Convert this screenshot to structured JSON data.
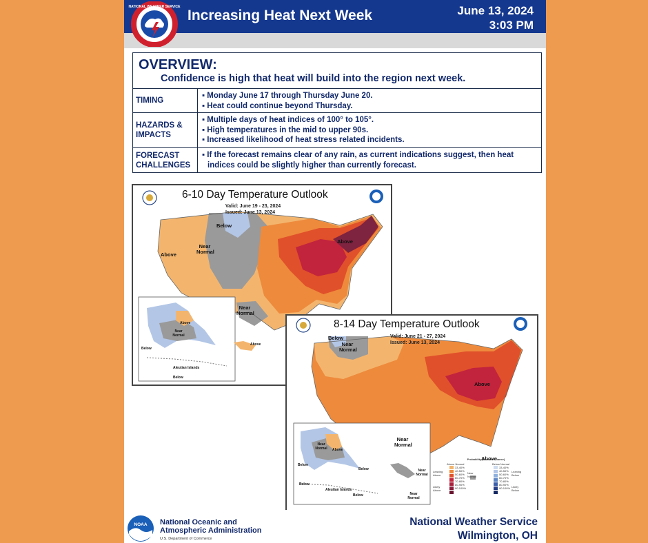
{
  "header": {
    "title": "Increasing Heat Next Week",
    "date": "June 13, 2024",
    "time": "3:03 PM",
    "logo_text": "NATIONAL WEATHER SERVICE",
    "bar_color": "#15388f"
  },
  "overview": {
    "title": "OVERVIEW:",
    "subtitle": "Confidence is high that heat will build into the region next week.",
    "rows": [
      {
        "label": "TIMING",
        "items": [
          "Monday June 17 through Thursday June 20.",
          "Heat could continue beyond Thursday."
        ]
      },
      {
        "label": "HAZARDS & IMPACTS",
        "items": [
          "Multiple days of heat indices of 100° to 105°.",
          "High temperatures in the mid to upper 90s.",
          "Increased likelihood of heat stress related incidents."
        ]
      },
      {
        "label": "FORECAST CHALLENGES",
        "items": [
          "If the forecast remains clear of any rain, as current indications suggest, then heat indices could be slightly higher than currently forecast."
        ]
      }
    ]
  },
  "map1": {
    "title": "6-10 Day Temperature Outlook",
    "valid": "Valid:  June 19 - 23, 2024",
    "issued": "Issued:  June 13, 2024",
    "labels": {
      "below": "Below",
      "near_normal": "Near Normal",
      "above_west": "Above",
      "above_east": "Above",
      "near_normal_tx": "Near Normal",
      "ak_above": "Above",
      "ak_near": "Near Normal",
      "ak_below": "Below",
      "aleutian": "Aleutian Islands",
      "hi_above": "Above",
      "below_small": "Below"
    }
  },
  "map2": {
    "title": "8-14 Day Temperature Outlook",
    "valid": "Valid:  June 21 - 27, 2024",
    "issued": "Issued:  June 13, 2024",
    "labels": {
      "below": "Below",
      "near_normal_nw": "Near Normal",
      "above_east": "Above",
      "near_normal_tx": "Near Normal",
      "above_fl": "Above",
      "ak_near": "Near Normal",
      "ak_above": "Above",
      "ak_below1": "Below",
      "ak_below2": "Below",
      "ak_below3": "Below",
      "aleutian": "Aleutian Islands",
      "ak_below4": "Below",
      "hi_near": "Near Normal",
      "hi_near2": "Near Normal"
    },
    "legend": {
      "title": "Probability (Percent Chance)",
      "above": "Above Normal",
      "below": "Below Normal",
      "leaning_above": "Leaning Above",
      "likely_above": "Likely Above",
      "leaning_below": "Leaning Below",
      "likely_below": "Likely Below",
      "near": "Near Normal",
      "above_bins": [
        "33-40%",
        "40-50%",
        "50-60%",
        "60-70%",
        "70-80%",
        "80-90%",
        "90-100%"
      ],
      "below_bins": [
        "33-40%",
        "40-50%",
        "50-60%",
        "60-70%",
        "70-80%",
        "80-90%",
        "90-100%"
      ]
    }
  },
  "footer": {
    "noaa_line1": "National Oceanic and",
    "noaa_line2": "Atmospheric Administration",
    "noaa_dept": "U.S. Department of Commerce",
    "nws_line1": "National Weather Service",
    "nws_line2": "Wilmington, OH",
    "noaa_logo_text": "NOAA"
  },
  "colors": {
    "background": "#ee9a4f",
    "navy": "#12296b",
    "near_normal": "#9a9a9a",
    "below": "#b3c6e6",
    "above_light": "#f3b56e",
    "above_mid": "#ee8a3c",
    "above_high": "#e0502a",
    "above_max": "#c2233d"
  }
}
